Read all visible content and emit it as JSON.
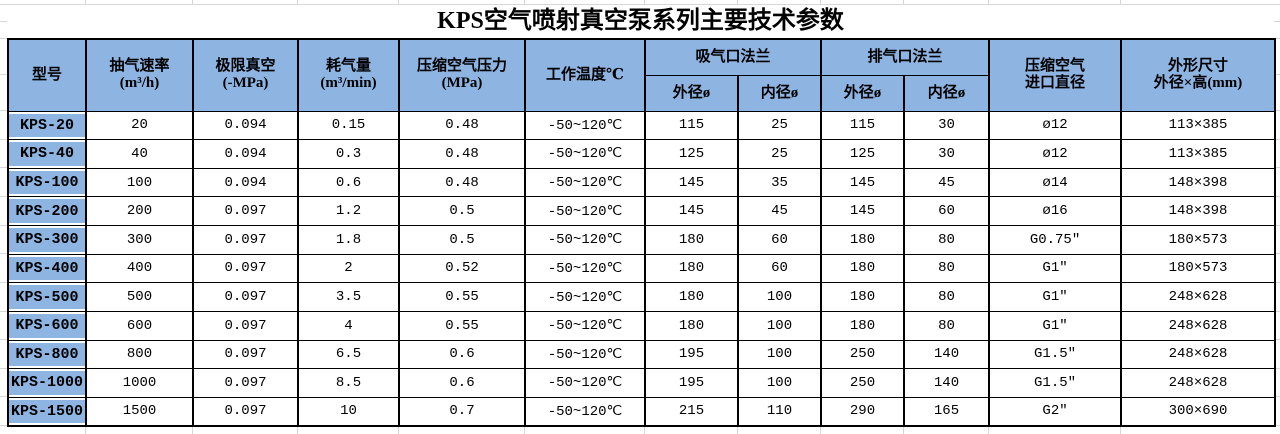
{
  "title": "KPS空气喷射真空泵系列主要技术参数",
  "colors": {
    "header_bg": "#8EB4E2",
    "border": "#000000",
    "gridline": "#D6D6D6"
  },
  "table": {
    "headers": {
      "model": "型号",
      "speed": "抽气速率\n(m³/h)",
      "vacuum": "极限真空\n(-MPa)",
      "consumption": "耗气量\n(m³/min)",
      "pressure": "压缩空气压力\n(MPa)",
      "temp": "工作温度℃",
      "suction_flange": "吸气口法兰",
      "exhaust_flange": "排气口法兰",
      "outer_dia": "外径ø",
      "inner_dia": "内径ø",
      "inlet": "压缩空气\n进口直径",
      "dims": "外形尺寸\n外径×高(mm)"
    },
    "rows": [
      {
        "model": "KPS-20",
        "speed": "20",
        "vacuum": "0.094",
        "consumption": "0.15",
        "pressure": "0.48",
        "temp": "-50~120℃",
        "s_od": "115",
        "s_id": "25",
        "e_od": "115",
        "e_id": "30",
        "inlet": "ø12",
        "dims": "113×385"
      },
      {
        "model": "KPS-40",
        "speed": "40",
        "vacuum": "0.094",
        "consumption": "0.3",
        "pressure": "0.48",
        "temp": "-50~120℃",
        "s_od": "125",
        "s_id": "25",
        "e_od": "125",
        "e_id": "30",
        "inlet": "ø12",
        "dims": "113×385"
      },
      {
        "model": "KPS-100",
        "speed": "100",
        "vacuum": "0.094",
        "consumption": "0.6",
        "pressure": "0.48",
        "temp": "-50~120℃",
        "s_od": "145",
        "s_id": "35",
        "e_od": "145",
        "e_id": "45",
        "inlet": "ø14",
        "dims": "148×398"
      },
      {
        "model": "KPS-200",
        "speed": "200",
        "vacuum": "0.097",
        "consumption": "1.2",
        "pressure": "0.5",
        "temp": "-50~120℃",
        "s_od": "145",
        "s_id": "45",
        "e_od": "145",
        "e_id": "60",
        "inlet": "ø16",
        "dims": "148×398"
      },
      {
        "model": "KPS-300",
        "speed": "300",
        "vacuum": "0.097",
        "consumption": "1.8",
        "pressure": "0.5",
        "temp": "-50~120℃",
        "s_od": "180",
        "s_id": "60",
        "e_od": "180",
        "e_id": "80",
        "inlet": "G0.75″",
        "dims": "180×573"
      },
      {
        "model": "KPS-400",
        "speed": "400",
        "vacuum": "0.097",
        "consumption": "2",
        "pressure": "0.52",
        "temp": "-50~120℃",
        "s_od": "180",
        "s_id": "60",
        "e_od": "180",
        "e_id": "80",
        "inlet": "G1″",
        "dims": "180×573"
      },
      {
        "model": "KPS-500",
        "speed": "500",
        "vacuum": "0.097",
        "consumption": "3.5",
        "pressure": "0.55",
        "temp": "-50~120℃",
        "s_od": "180",
        "s_id": "100",
        "e_od": "180",
        "e_id": "80",
        "inlet": "G1″",
        "dims": "248×628"
      },
      {
        "model": "KPS-600",
        "speed": "600",
        "vacuum": "0.097",
        "consumption": "4",
        "pressure": "0.55",
        "temp": "-50~120℃",
        "s_od": "180",
        "s_id": "100",
        "e_od": "180",
        "e_id": "80",
        "inlet": "G1″",
        "dims": "248×628"
      },
      {
        "model": "KPS-800",
        "speed": "800",
        "vacuum": "0.097",
        "consumption": "6.5",
        "pressure": "0.6",
        "temp": "-50~120℃",
        "s_od": "195",
        "s_id": "100",
        "e_od": "250",
        "e_id": "140",
        "inlet": "G1.5″",
        "dims": "248×628"
      },
      {
        "model": "KPS-1000",
        "speed": "1000",
        "vacuum": "0.097",
        "consumption": "8.5",
        "pressure": "0.6",
        "temp": "-50~120℃",
        "s_od": "195",
        "s_id": "100",
        "e_od": "250",
        "e_id": "140",
        "inlet": "G1.5″",
        "dims": "248×628"
      },
      {
        "model": "KPS-1500",
        "speed": "1500",
        "vacuum": "0.097",
        "consumption": "10",
        "pressure": "0.7",
        "temp": "-50~120℃",
        "s_od": "215",
        "s_id": "110",
        "e_od": "290",
        "e_id": "165",
        "inlet": "G2″",
        "dims": "300×690"
      }
    ]
  }
}
